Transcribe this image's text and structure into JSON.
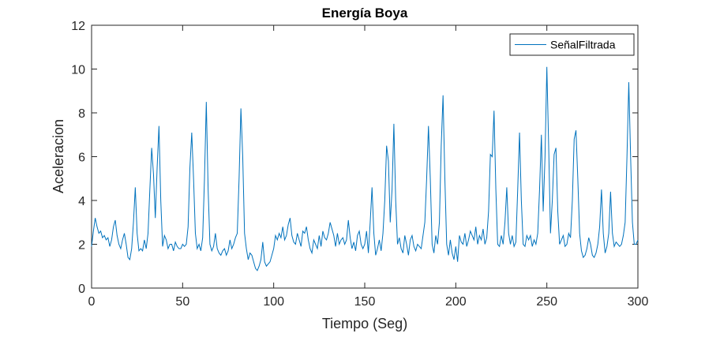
{
  "chart_data": {
    "type": "line",
    "title": "Energía Boya",
    "x_label": "Tiempo (Seg)",
    "y_label": "Aceleracion",
    "x": [
      0,
      1,
      2,
      3,
      4,
      5,
      6,
      7,
      8,
      9,
      10,
      11,
      12,
      13,
      14,
      15,
      16,
      17,
      18,
      19,
      20,
      21,
      22,
      23,
      24,
      25,
      26,
      27,
      28,
      29,
      30,
      31,
      32,
      33,
      34,
      35,
      36,
      37,
      38,
      39,
      40,
      41,
      42,
      43,
      44,
      45,
      46,
      47,
      48,
      49,
      50,
      51,
      52,
      53,
      54,
      55,
      56,
      57,
      58,
      59,
      60,
      61,
      62,
      63,
      64,
      65,
      66,
      67,
      68,
      69,
      70,
      71,
      72,
      73,
      74,
      75,
      76,
      77,
      78,
      79,
      80,
      81,
      82,
      83,
      84,
      85,
      86,
      87,
      88,
      89,
      90,
      91,
      92,
      93,
      94,
      95,
      96,
      97,
      98,
      99,
      100,
      101,
      102,
      103,
      104,
      105,
      106,
      107,
      108,
      109,
      110,
      111,
      112,
      113,
      114,
      115,
      116,
      117,
      118,
      119,
      120,
      121,
      122,
      123,
      124,
      125,
      126,
      127,
      128,
      129,
      130,
      131,
      132,
      133,
      134,
      135,
      136,
      137,
      138,
      139,
      140,
      141,
      142,
      143,
      144,
      145,
      146,
      147,
      148,
      149,
      150,
      151,
      152,
      153,
      154,
      155,
      156,
      157,
      158,
      159,
      160,
      161,
      162,
      163,
      164,
      165,
      166,
      167,
      168,
      169,
      170,
      171,
      172,
      173,
      174,
      175,
      176,
      177,
      178,
      179,
      180,
      181,
      182,
      183,
      184,
      185,
      186,
      187,
      188,
      189,
      190,
      191,
      192,
      193,
      194,
      195,
      196,
      197,
      198,
      199,
      200,
      201,
      202,
      203,
      204,
      205,
      206,
      207,
      208,
      209,
      210,
      211,
      212,
      213,
      214,
      215,
      216,
      217,
      218,
      219,
      220,
      221,
      222,
      223,
      224,
      225,
      226,
      227,
      228,
      229,
      230,
      231,
      232,
      233,
      234,
      235,
      236,
      237,
      238,
      239,
      240,
      241,
      242,
      243,
      244,
      245,
      246,
      247,
      248,
      249,
      250,
      251,
      252,
      253,
      254,
      255,
      256,
      257,
      258,
      259,
      260,
      261,
      262,
      263,
      264,
      265,
      266,
      267,
      268,
      269,
      270,
      271,
      272,
      273,
      274,
      275,
      276,
      277,
      278,
      279,
      280,
      281,
      282,
      283,
      284,
      285,
      286,
      287,
      288,
      289,
      290,
      291,
      292,
      293,
      294,
      295,
      296,
      297,
      298,
      299,
      300
    ],
    "series": [
      {
        "name": "SeñalFiltrada",
        "color": "#0072bd",
        "values": [
          1.9,
          2.6,
          3.2,
          2.8,
          2.5,
          2.6,
          2.3,
          2.4,
          2.2,
          2.3,
          1.9,
          2.2,
          2.8,
          3.1,
          2.4,
          2.0,
          1.8,
          2.2,
          2.5,
          2.0,
          1.4,
          1.3,
          1.8,
          3.0,
          4.6,
          2.5,
          1.7,
          1.8,
          1.7,
          2.2,
          1.8,
          2.5,
          4.5,
          6.4,
          5.2,
          3.2,
          5.5,
          7.4,
          4.0,
          1.9,
          2.4,
          2.2,
          1.8,
          2.0,
          2.0,
          1.7,
          2.1,
          1.9,
          1.8,
          1.8,
          2.0,
          1.9,
          2.0,
          2.8,
          5.5,
          7.1,
          5.0,
          2.5,
          1.8,
          2.0,
          1.7,
          2.3,
          5.0,
          8.5,
          4.5,
          2.0,
          1.7,
          1.9,
          2.5,
          1.8,
          1.6,
          1.5,
          1.7,
          1.8,
          1.5,
          1.7,
          2.2,
          1.8,
          2.0,
          2.3,
          2.5,
          5.0,
          8.2,
          6.0,
          2.5,
          1.8,
          1.3,
          1.6,
          1.5,
          1.2,
          0.9,
          0.8,
          1.0,
          1.3,
          2.1,
          1.2,
          1.0,
          1.1,
          1.2,
          1.5,
          1.8,
          2.4,
          2.2,
          2.5,
          2.3,
          2.8,
          2.2,
          2.4,
          2.9,
          3.2,
          2.4,
          2.1,
          2.0,
          2.5,
          2.2,
          1.9,
          2.6,
          2.5,
          2.8,
          2.2,
          1.8,
          1.6,
          2.2,
          2.0,
          1.8,
          2.4,
          1.9,
          2.6,
          2.3,
          2.2,
          2.5,
          3.0,
          2.7,
          2.4,
          1.9,
          2.5,
          2.0,
          2.2,
          2.3,
          2.0,
          2.2,
          3.1,
          2.3,
          1.8,
          2.1,
          1.7,
          2.4,
          2.6,
          2.0,
          1.8,
          2.0,
          2.6,
          1.6,
          3.0,
          4.6,
          2.5,
          1.5,
          1.8,
          2.2,
          1.7,
          2.5,
          4.0,
          6.5,
          5.8,
          3.0,
          4.5,
          7.5,
          4.0,
          2.0,
          2.3,
          1.8,
          1.6,
          2.4,
          2.0,
          1.5,
          2.2,
          2.4,
          1.9,
          1.7,
          2.0,
          1.9,
          1.8,
          2.4,
          3.0,
          5.0,
          7.4,
          5.0,
          2.0,
          1.6,
          2.4,
          2.0,
          3.0,
          6.5,
          8.8,
          5.0,
          2.0,
          1.5,
          2.2,
          1.6,
          1.3,
          1.9,
          1.2,
          2.4,
          2.1,
          2.0,
          2.5,
          1.9,
          2.2,
          2.6,
          2.4,
          2.2,
          2.8,
          2.0,
          2.4,
          2.2,
          2.7,
          2.0,
          2.3,
          3.5,
          6.1,
          6.0,
          8.1,
          4.5,
          2.0,
          1.9,
          2.4,
          2.0,
          3.0,
          4.6,
          2.5,
          2.0,
          2.4,
          1.9,
          2.1,
          4.5,
          7.1,
          4.0,
          2.0,
          1.9,
          2.4,
          2.2,
          2.4,
          1.9,
          2.2,
          2.0,
          2.5,
          4.5,
          7.0,
          3.5,
          6.0,
          10.1,
          6.5,
          2.5,
          4.0,
          6.1,
          6.4,
          3.5,
          2.0,
          2.2,
          2.4,
          1.9,
          2.0,
          2.5,
          2.3,
          4.0,
          6.8,
          7.2,
          5.0,
          2.5,
          1.7,
          1.4,
          1.5,
          1.8,
          2.3,
          2.0,
          1.5,
          1.4,
          1.6,
          2.0,
          2.8,
          4.5,
          2.5,
          1.6,
          1.9,
          2.5,
          4.4,
          2.5,
          1.9,
          2.1,
          2.0,
          1.9,
          2.0,
          2.4,
          3.0,
          6.0,
          9.4,
          6.0,
          3.0,
          2.0,
          2.0,
          2.2
        ]
      }
    ],
    "xlim": [
      0,
      300
    ],
    "xticks": [
      0,
      50,
      100,
      150,
      200,
      250,
      300
    ],
    "ylim": [
      0,
      12
    ],
    "yticks": [
      0,
      2,
      4,
      6,
      8,
      10,
      12
    ],
    "grid": false,
    "legend": "upper right"
  }
}
